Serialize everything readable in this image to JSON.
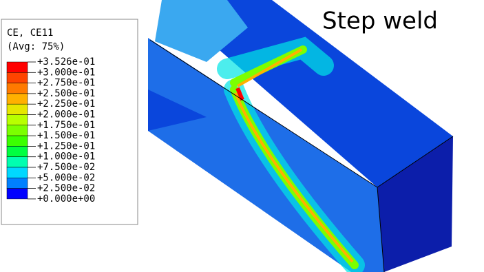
{
  "title": "Step weld",
  "legend": {
    "title": "CE, CE11",
    "subtitle": "(Avg: 75%)",
    "labels": [
      "+3.526e-01",
      "+3.000e-01",
      "+2.750e-01",
      "+2.500e-01",
      "+2.250e-01",
      "+2.000e-01",
      "+1.750e-01",
      "+1.500e-01",
      "+1.250e-01",
      "+1.000e-01",
      "+7.500e-02",
      "+5.000e-02",
      "+2.500e-02",
      "+0.000e+00"
    ],
    "colors": [
      "#ff0000",
      "#ff4400",
      "#ff7a00",
      "#ffb000",
      "#e6e600",
      "#b8ff00",
      "#7cff00",
      "#3cff00",
      "#00ff40",
      "#00ffb0",
      "#00d8ff",
      "#0080ff",
      "#0000ff"
    ]
  }
}
